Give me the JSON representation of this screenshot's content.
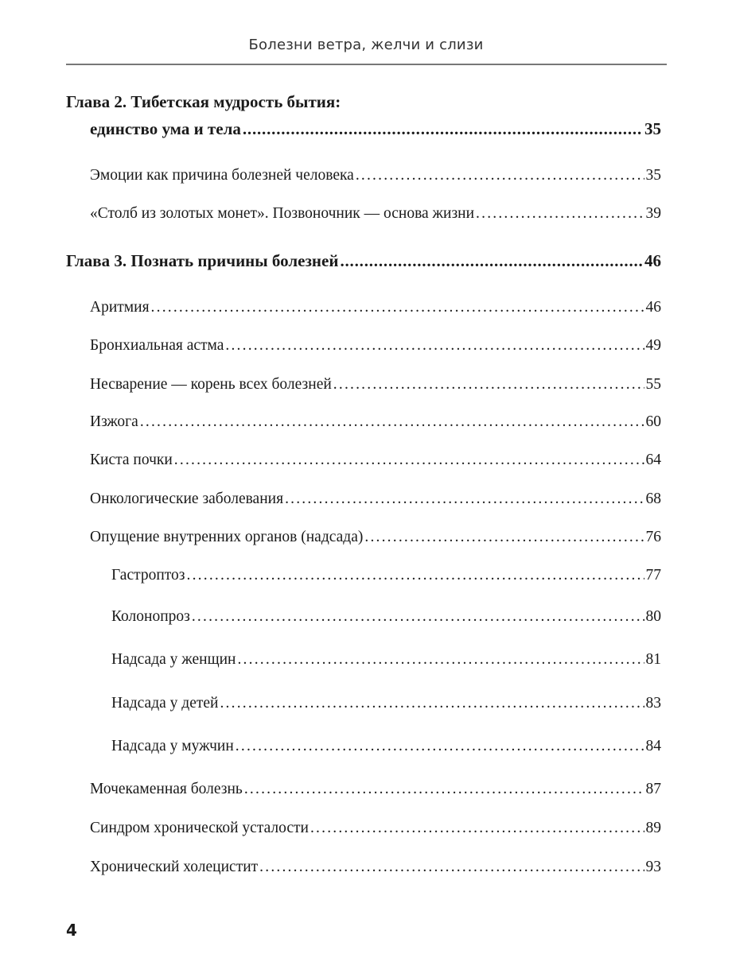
{
  "running_head": "Болезни ветра, желчи и слизи",
  "chapter2": {
    "title_line1": "Глава 2. Тибетская мудрость бытия:",
    "title_line2": "единство ума и тела",
    "page": "35"
  },
  "entries": [
    {
      "title": "Эмоции как причина болезней человека",
      "page": "35"
    },
    {
      "title": "«Столб из золотых монет». Позвоночник — основа жизни",
      "page": "39"
    },
    {
      "title": "Глава 3. Познать причины болезней",
      "page": "46"
    },
    {
      "title": "Аритмия",
      "page": "46"
    },
    {
      "title": "Бронхиальная астма",
      "page": "49"
    },
    {
      "title": "Несварение — корень всех болезней",
      "page": "55"
    },
    {
      "title": "Изжога",
      "page": "60"
    },
    {
      "title": "Киста почки",
      "page": "64"
    },
    {
      "title": "Онкологические заболевания",
      "page": "68"
    },
    {
      "title": "Опущение внутренних органов (надсада)",
      "page": "76"
    },
    {
      "title": "Гастроптоз",
      "page": "77"
    },
    {
      "title": "Колонопроз",
      "page": "80"
    },
    {
      "title": "Надсада у женщин",
      "page": "81"
    },
    {
      "title": "Надсада у детей",
      "page": "83"
    },
    {
      "title": "Надсада у мужчин",
      "page": "84"
    },
    {
      "title": "Мочекаменная болезнь",
      "page": "87"
    },
    {
      "title": "Синдром хронической усталости",
      "page": "89"
    },
    {
      "title": "Хронический холецистит",
      "page": "93"
    }
  ],
  "page_number": "4"
}
